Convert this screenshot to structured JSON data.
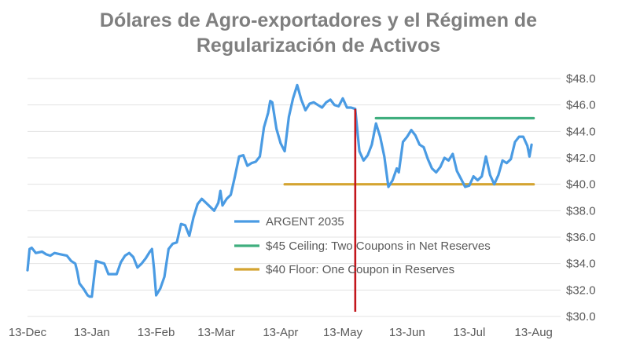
{
  "chart_data": {
    "type": "line",
    "title_lines": [
      "Dólares de Agro-exportadores y el Régimen de",
      "Regularización de Activos"
    ],
    "ylim": [
      30,
      48
    ],
    "y_ticks": [
      {
        "value": 48,
        "label": "$48.0"
      },
      {
        "value": 46,
        "label": "$46.0"
      },
      {
        "value": 44,
        "label": "$44.0"
      },
      {
        "value": 42,
        "label": "$42.0"
      },
      {
        "value": 40,
        "label": "$40.0"
      },
      {
        "value": 38,
        "label": "$38.0"
      },
      {
        "value": 36,
        "label": "$36.0"
      },
      {
        "value": 34,
        "label": "$34.0"
      },
      {
        "value": 32,
        "label": "$32.0"
      },
      {
        "value": 30,
        "label": "$30.0"
      }
    ],
    "x_range": [
      "2015-12-13",
      "2016-08-26"
    ],
    "x_ticks": [
      {
        "date": "2015-12-13",
        "label": "13-Dec"
      },
      {
        "date": "2016-01-13",
        "label": "13-Jan"
      },
      {
        "date": "2016-02-13",
        "label": "13-Feb"
      },
      {
        "date": "2016-03-13",
        "label": "13-Mar"
      },
      {
        "date": "2016-04-13",
        "label": "13-Apr"
      },
      {
        "date": "2016-05-13",
        "label": "13-May"
      },
      {
        "date": "2016-06-13",
        "label": "13-Jun"
      },
      {
        "date": "2016-07-13",
        "label": "13-Jul"
      },
      {
        "date": "2016-08-13",
        "label": "13-Aug"
      }
    ],
    "grid": true,
    "legend_position": "center",
    "series": [
      {
        "name": "ARGENT 2035",
        "color": "#4a9be3",
        "points": [
          [
            "2015-12-13",
            33.5
          ],
          [
            "2015-12-14",
            35.1
          ],
          [
            "2015-12-15",
            35.2
          ],
          [
            "2015-12-17",
            34.8
          ],
          [
            "2015-12-20",
            34.9
          ],
          [
            "2015-12-22",
            34.7
          ],
          [
            "2015-12-24",
            34.6
          ],
          [
            "2015-12-26",
            34.8
          ],
          [
            "2015-12-29",
            34.7
          ],
          [
            "2016-01-01",
            34.6
          ],
          [
            "2016-01-03",
            34.2
          ],
          [
            "2016-01-05",
            34.0
          ],
          [
            "2016-01-06",
            33.4
          ],
          [
            "2016-01-07",
            32.5
          ],
          [
            "2016-01-09",
            32.1
          ],
          [
            "2016-01-11",
            31.6
          ],
          [
            "2016-01-12",
            31.5
          ],
          [
            "2016-01-13",
            31.5
          ],
          [
            "2016-01-15",
            34.2
          ],
          [
            "2016-01-17",
            34.1
          ],
          [
            "2016-01-19",
            34.0
          ],
          [
            "2016-01-21",
            33.2
          ],
          [
            "2016-01-23",
            33.2
          ],
          [
            "2016-01-25",
            33.2
          ],
          [
            "2016-01-27",
            34.1
          ],
          [
            "2016-01-29",
            34.6
          ],
          [
            "2016-01-31",
            34.8
          ],
          [
            "2016-02-02",
            34.5
          ],
          [
            "2016-02-04",
            33.7
          ],
          [
            "2016-02-06",
            34.0
          ],
          [
            "2016-02-08",
            34.4
          ],
          [
            "2016-02-10",
            34.9
          ],
          [
            "2016-02-11",
            35.1
          ],
          [
            "2016-02-12",
            33.6
          ],
          [
            "2016-02-13",
            31.6
          ],
          [
            "2016-02-15",
            32.1
          ],
          [
            "2016-02-17",
            33.0
          ],
          [
            "2016-02-19",
            35.1
          ],
          [
            "2016-02-21",
            35.5
          ],
          [
            "2016-02-23",
            35.6
          ],
          [
            "2016-02-25",
            37.0
          ],
          [
            "2016-02-27",
            36.9
          ],
          [
            "2016-02-29",
            36.1
          ],
          [
            "2016-03-02",
            37.5
          ],
          [
            "2016-03-04",
            38.5
          ],
          [
            "2016-03-06",
            38.9
          ],
          [
            "2016-03-08",
            38.6
          ],
          [
            "2016-03-10",
            38.3
          ],
          [
            "2016-03-12",
            38.0
          ],
          [
            "2016-03-14",
            38.6
          ],
          [
            "2016-03-15",
            39.5
          ],
          [
            "2016-03-16",
            38.4
          ],
          [
            "2016-03-18",
            38.9
          ],
          [
            "2016-03-20",
            39.2
          ],
          [
            "2016-03-22",
            40.6
          ],
          [
            "2016-03-24",
            42.1
          ],
          [
            "2016-03-26",
            42.2
          ],
          [
            "2016-03-28",
            41.4
          ],
          [
            "2016-03-30",
            41.6
          ],
          [
            "2016-04-01",
            41.7
          ],
          [
            "2016-04-03",
            42.1
          ],
          [
            "2016-04-05",
            44.3
          ],
          [
            "2016-04-07",
            45.4
          ],
          [
            "2016-04-08",
            46.3
          ],
          [
            "2016-04-09",
            46.2
          ],
          [
            "2016-04-11",
            44.2
          ],
          [
            "2016-04-13",
            43.1
          ],
          [
            "2016-04-15",
            42.5
          ],
          [
            "2016-04-17",
            45.1
          ],
          [
            "2016-04-19",
            46.5
          ],
          [
            "2016-04-21",
            47.5
          ],
          [
            "2016-04-23",
            46.4
          ],
          [
            "2016-04-25",
            45.6
          ],
          [
            "2016-04-27",
            46.1
          ],
          [
            "2016-04-29",
            46.2
          ],
          [
            "2016-05-01",
            46.0
          ],
          [
            "2016-05-03",
            45.8
          ],
          [
            "2016-05-05",
            46.2
          ],
          [
            "2016-05-07",
            46.4
          ],
          [
            "2016-05-09",
            46.0
          ],
          [
            "2016-05-11",
            45.9
          ],
          [
            "2016-05-13",
            46.5
          ],
          [
            "2016-05-15",
            45.8
          ],
          [
            "2016-05-17",
            45.8
          ],
          [
            "2016-05-19",
            45.7
          ],
          [
            "2016-05-21",
            42.5
          ],
          [
            "2016-05-23",
            41.8
          ],
          [
            "2016-05-25",
            42.2
          ],
          [
            "2016-05-27",
            43.0
          ],
          [
            "2016-05-29",
            44.6
          ],
          [
            "2016-05-31",
            43.6
          ],
          [
            "2016-06-02",
            42.1
          ],
          [
            "2016-06-04",
            39.8
          ],
          [
            "2016-06-06",
            40.3
          ],
          [
            "2016-06-08",
            41.2
          ],
          [
            "2016-06-09",
            40.9
          ],
          [
            "2016-06-11",
            43.2
          ],
          [
            "2016-06-13",
            43.6
          ],
          [
            "2016-06-15",
            44.1
          ],
          [
            "2016-06-17",
            43.7
          ],
          [
            "2016-06-19",
            43.0
          ],
          [
            "2016-06-21",
            42.8
          ],
          [
            "2016-06-23",
            41.9
          ],
          [
            "2016-06-25",
            41.2
          ],
          [
            "2016-06-27",
            40.9
          ],
          [
            "2016-06-29",
            41.3
          ],
          [
            "2016-07-01",
            42.0
          ],
          [
            "2016-07-03",
            41.8
          ],
          [
            "2016-07-05",
            42.3
          ],
          [
            "2016-07-07",
            41.0
          ],
          [
            "2016-07-09",
            40.4
          ],
          [
            "2016-07-11",
            39.8
          ],
          [
            "2016-07-13",
            39.9
          ],
          [
            "2016-07-15",
            40.6
          ],
          [
            "2016-07-17",
            40.3
          ],
          [
            "2016-07-19",
            40.6
          ],
          [
            "2016-07-21",
            42.1
          ],
          [
            "2016-07-23",
            40.7
          ],
          [
            "2016-07-25",
            40.0
          ],
          [
            "2016-07-27",
            40.7
          ],
          [
            "2016-07-29",
            41.8
          ],
          [
            "2016-07-31",
            41.6
          ],
          [
            "2016-08-02",
            41.9
          ],
          [
            "2016-08-04",
            43.2
          ],
          [
            "2016-08-06",
            43.6
          ],
          [
            "2016-08-08",
            43.6
          ],
          [
            "2016-08-10",
            42.9
          ],
          [
            "2016-08-11",
            42.1
          ],
          [
            "2016-08-12",
            43.0
          ]
        ]
      },
      {
        "name": "$45 Ceiling: Two Coupons in Net Reserves",
        "color": "#3fae7e",
        "points": [
          [
            "2016-05-29",
            45.0
          ],
          [
            "2016-08-13",
            45.0
          ]
        ]
      },
      {
        "name": "$40 Floor: One Coupon in Reserves",
        "color": "#d4a431",
        "points": [
          [
            "2016-04-15",
            40.0
          ],
          [
            "2016-08-13",
            40.0
          ]
        ]
      }
    ],
    "annotations": [
      {
        "type": "vertical-line",
        "date": "2016-05-19",
        "color": "#c3161c"
      }
    ]
  }
}
